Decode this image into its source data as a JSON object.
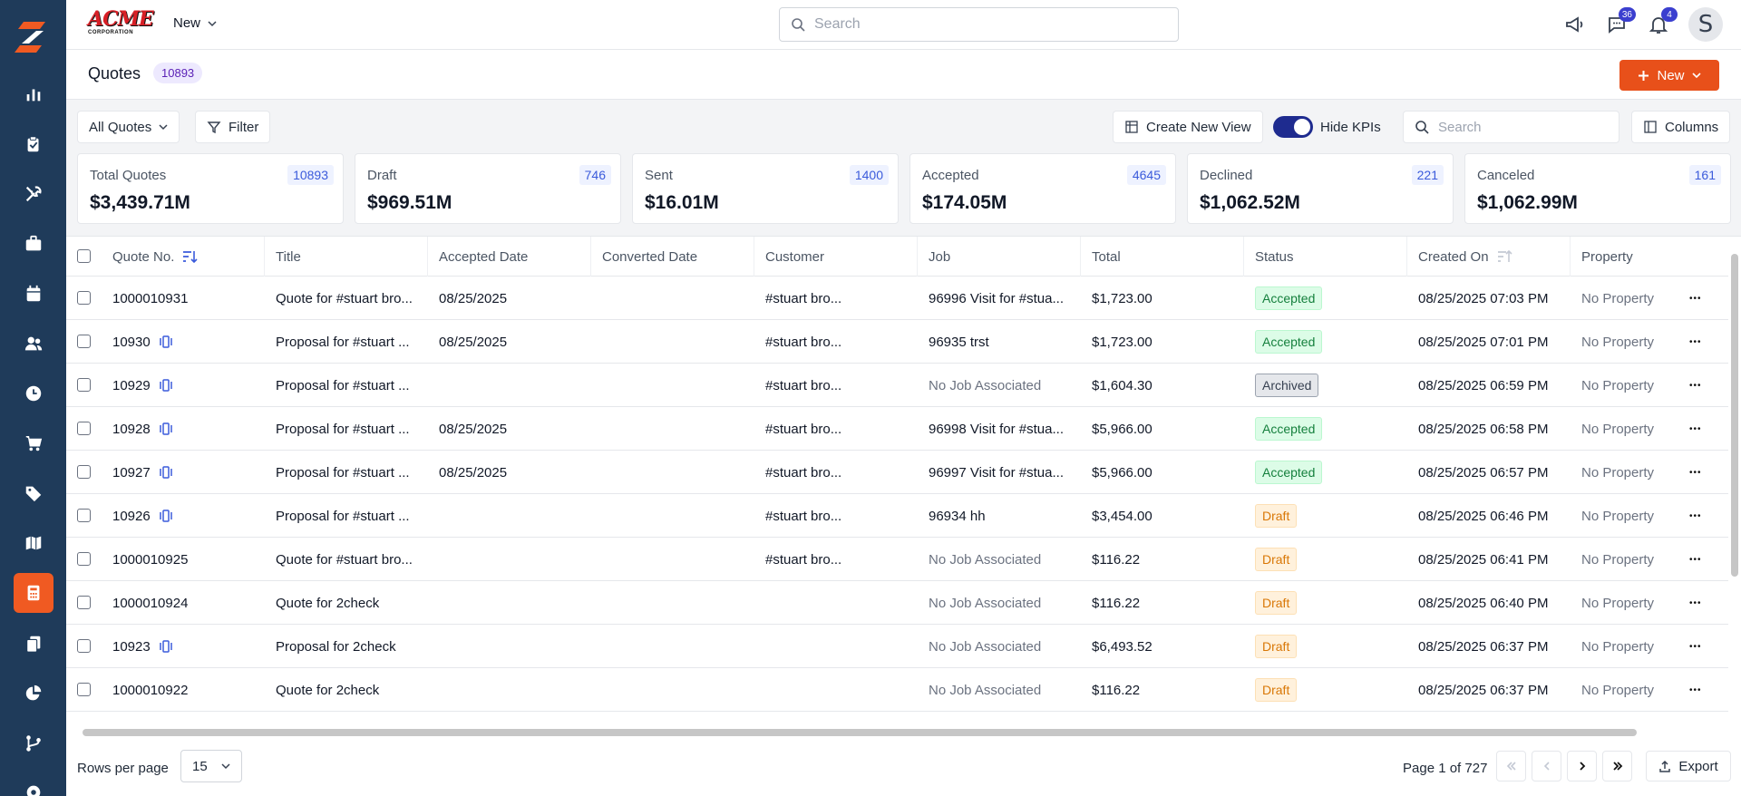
{
  "topbar": {
    "logo_text": "ACME",
    "logo_subtext": "CORPORATION",
    "new_label": "New",
    "search_placeholder": "Search",
    "messages_badge": "36",
    "notifications_badge": "4",
    "avatar_letter": "S"
  },
  "titlebar": {
    "title": "Quotes",
    "count": "10893",
    "new_button": "New"
  },
  "toolbar": {
    "view_select": "All Quotes",
    "filter": "Filter",
    "create_view": "Create New View",
    "hide_kpis": "Hide KPIs",
    "search_placeholder": "Search",
    "columns": "Columns"
  },
  "kpis": [
    {
      "label": "Total Quotes",
      "count": "10893",
      "value": "$3,439.71M"
    },
    {
      "label": "Draft",
      "count": "746",
      "value": "$969.51M"
    },
    {
      "label": "Sent",
      "count": "1400",
      "value": "$16.01M"
    },
    {
      "label": "Accepted",
      "count": "4645",
      "value": "$174.05M"
    },
    {
      "label": "Declined",
      "count": "221",
      "value": "$1,062.52M"
    },
    {
      "label": "Canceled",
      "count": "161",
      "value": "$1,062.99M"
    }
  ],
  "table": {
    "columns": [
      "Quote No.",
      "Title",
      "Accepted Date",
      "Converted Date",
      "Customer",
      "Job",
      "Total",
      "Status",
      "Created On",
      "Property"
    ],
    "rows": [
      {
        "quote_no": "1000010931",
        "proposal": false,
        "title": "Quote for #stuart bro...",
        "accepted": "08/25/2025",
        "converted": "",
        "customer": "#stuart bro...",
        "job": "96996 Visit for #stua...",
        "job_muted": false,
        "total": "$1,723.00",
        "status": "Accepted",
        "created": "08/25/2025 07:03 PM",
        "property": "No Property"
      },
      {
        "quote_no": "10930",
        "proposal": true,
        "title": "Proposal for #stuart ...",
        "accepted": "08/25/2025",
        "converted": "",
        "customer": "#stuart bro...",
        "job": "96935 trst",
        "job_muted": false,
        "total": "$1,723.00",
        "status": "Accepted",
        "created": "08/25/2025 07:01 PM",
        "property": "No Property"
      },
      {
        "quote_no": "10929",
        "proposal": true,
        "title": "Proposal for #stuart ...",
        "accepted": "",
        "converted": "",
        "customer": "#stuart bro...",
        "job": "No Job Associated",
        "job_muted": true,
        "total": "$1,604.30",
        "status": "Archived",
        "created": "08/25/2025 06:59 PM",
        "property": "No Property"
      },
      {
        "quote_no": "10928",
        "proposal": true,
        "title": "Proposal for #stuart ...",
        "accepted": "08/25/2025",
        "converted": "",
        "customer": "#stuart bro...",
        "job": "96998 Visit for #stua...",
        "job_muted": false,
        "total": "$5,966.00",
        "status": "Accepted",
        "created": "08/25/2025 06:58 PM",
        "property": "No Property"
      },
      {
        "quote_no": "10927",
        "proposal": true,
        "title": "Proposal for #stuart ...",
        "accepted": "08/25/2025",
        "converted": "",
        "customer": "#stuart bro...",
        "job": "96997 Visit for #stua...",
        "job_muted": false,
        "total": "$5,966.00",
        "status": "Accepted",
        "created": "08/25/2025 06:57 PM",
        "property": "No Property"
      },
      {
        "quote_no": "10926",
        "proposal": true,
        "title": "Proposal for #stuart ...",
        "accepted": "",
        "converted": "",
        "customer": "#stuart bro...",
        "job": "96934 hh",
        "job_muted": false,
        "total": "$3,454.00",
        "status": "Draft",
        "created": "08/25/2025 06:46 PM",
        "property": "No Property"
      },
      {
        "quote_no": "1000010925",
        "proposal": false,
        "title": "Quote for #stuart bro...",
        "accepted": "",
        "converted": "",
        "customer": "#stuart bro...",
        "job": "No Job Associated",
        "job_muted": true,
        "total": "$116.22",
        "status": "Draft",
        "created": "08/25/2025 06:41 PM",
        "property": "No Property"
      },
      {
        "quote_no": "1000010924",
        "proposal": false,
        "title": "Quote for 2check",
        "accepted": "",
        "converted": "",
        "customer": "",
        "job": "No Job Associated",
        "job_muted": true,
        "total": "$116.22",
        "status": "Draft",
        "created": "08/25/2025 06:40 PM",
        "property": "No Property"
      },
      {
        "quote_no": "10923",
        "proposal": true,
        "title": "Proposal for 2check",
        "accepted": "",
        "converted": "",
        "customer": "",
        "job": "No Job Associated",
        "job_muted": true,
        "total": "$6,493.52",
        "status": "Draft",
        "created": "08/25/2025 06:37 PM",
        "property": "No Property"
      },
      {
        "quote_no": "1000010922",
        "proposal": false,
        "title": "Quote for 2check",
        "accepted": "",
        "converted": "",
        "customer": "",
        "job": "No Job Associated",
        "job_muted": true,
        "total": "$116.22",
        "status": "Draft",
        "created": "08/25/2025 06:37 PM",
        "property": "No Property"
      }
    ]
  },
  "footer": {
    "rows_per_page_label": "Rows per page",
    "rows_per_page_value": "15",
    "page_info": "Page 1 of 727",
    "export": "Export"
  },
  "colors": {
    "sidebar": "#1f3b5a",
    "accent": "#e8501a",
    "toggle": "#1e2b8f"
  },
  "sidebar_icons": [
    "dashboard-icon",
    "clipboard-icon",
    "tools-icon",
    "briefcase-icon",
    "calendar-icon",
    "users-icon",
    "clock-icon",
    "cart-icon",
    "tag-icon",
    "map-icon",
    "calculator-icon",
    "documents-icon",
    "pie-chart-icon",
    "branch-icon",
    "settings-icon"
  ]
}
